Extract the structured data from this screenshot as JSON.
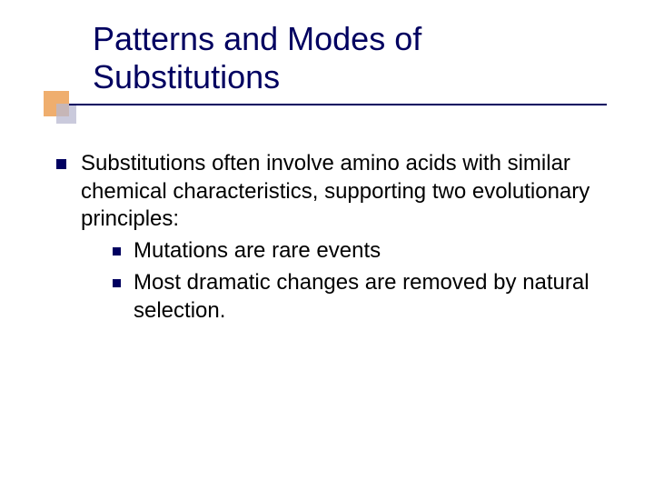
{
  "slide": {
    "title": "Patterns and Modes of Substitutions",
    "title_color": "#000060",
    "title_fontsize": 36,
    "body_fontsize": 24,
    "body_color": "#000000",
    "bullet_color": "#000060",
    "decoration": {
      "square1_color": "#e88c30",
      "square2_color": "#b8b8d0",
      "line_color": "#000060"
    },
    "background_color": "#ffffff",
    "main_bullet": "Substitutions often involve amino acids with similar chemical characteristics, supporting two evolutionary principles:",
    "sub_bullets": [
      "Mutations are rare events",
      "Most dramatic changes are removed by natural selection."
    ]
  }
}
